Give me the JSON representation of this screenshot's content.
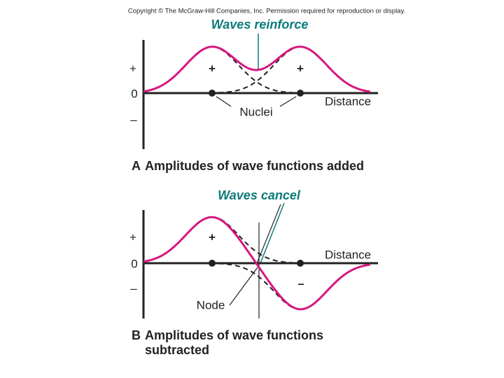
{
  "copyright": "Copyright © The McGraw-Hill Companies, Inc. Permission required for reproduction or display.",
  "panel_a": {
    "callout": "Waves reinforce",
    "axis_labels": [
      "+",
      "0",
      "–"
    ],
    "lobe_signs": [
      "+",
      "+"
    ],
    "nuclei_label": "Nuclei",
    "distance_label": "Distance",
    "letter": "A",
    "caption": "Amplitudes of wave functions added"
  },
  "panel_b": {
    "callout": "Waves cancel",
    "axis_labels": [
      "+",
      "0",
      "–"
    ],
    "lobe_signs": [
      "+",
      "–"
    ],
    "distance_label": "Distance",
    "node_label": "Node",
    "letter": "B",
    "caption_lines": [
      "Amplitudes of wave functions",
      "subtracted"
    ]
  }
}
